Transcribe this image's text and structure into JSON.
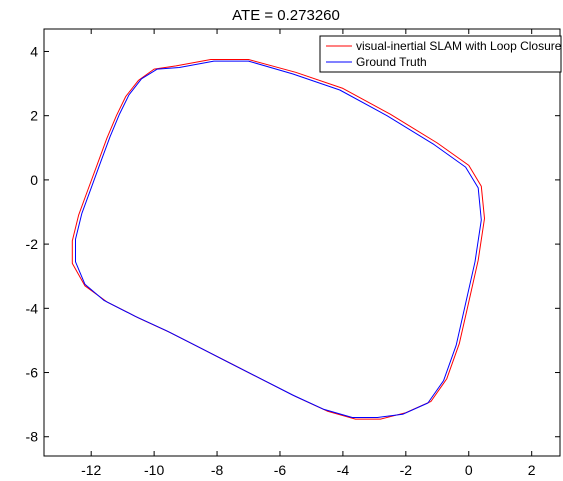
{
  "chart_data": {
    "type": "line",
    "title": "ATE = 0.273260",
    "xlabel": "",
    "ylabel": "",
    "xlim": [
      -13.5,
      2.9
    ],
    "ylim": [
      -8.6,
      4.7
    ],
    "x_ticks": [
      -12,
      -10,
      -8,
      -6,
      -4,
      -2,
      0,
      2
    ],
    "y_ticks": [
      -8,
      -6,
      -4,
      -2,
      0,
      2,
      4
    ],
    "grid": false,
    "legend_position": "top-right",
    "series": [
      {
        "name": "visual-inertial SLAM with Loop Closure",
        "color": "#ff0000",
        "x": [
          -9.3,
          -8.2,
          -7.0,
          -5.5,
          -4.0,
          -2.5,
          -1.0,
          0.0,
          0.4,
          0.5,
          0.3,
          0.0,
          -0.3,
          -0.7,
          -1.2,
          -2.0,
          -2.8,
          -3.6,
          -4.5,
          -5.5,
          -6.5,
          -7.5,
          -8.5,
          -9.5,
          -10.5,
          -11.5,
          -12.2,
          -12.6,
          -12.6,
          -12.4,
          -12.1,
          -11.8,
          -11.5,
          -11.2,
          -10.9,
          -10.5,
          -10.0,
          -9.3
        ],
        "y": [
          3.55,
          3.75,
          3.75,
          3.35,
          2.85,
          2.05,
          1.15,
          0.45,
          -0.2,
          -1.2,
          -2.5,
          -3.8,
          -5.1,
          -6.2,
          -6.9,
          -7.25,
          -7.45,
          -7.45,
          -7.2,
          -6.75,
          -6.25,
          -5.75,
          -5.25,
          -4.75,
          -4.3,
          -3.8,
          -3.3,
          -2.6,
          -1.9,
          -1.1,
          -0.3,
          0.5,
          1.3,
          2.0,
          2.6,
          3.1,
          3.45,
          3.55
        ]
      },
      {
        "name": "Ground Truth",
        "color": "#0000ff",
        "x": [
          -9.2,
          -8.1,
          -7.0,
          -5.6,
          -4.1,
          -2.6,
          -1.1,
          -0.1,
          0.3,
          0.4,
          0.2,
          -0.1,
          -0.4,
          -0.8,
          -1.3,
          -2.1,
          -2.9,
          -3.7,
          -4.6,
          -5.6,
          -6.6,
          -7.6,
          -8.6,
          -9.6,
          -10.6,
          -11.6,
          -12.2,
          -12.5,
          -12.5,
          -12.3,
          -12.0,
          -11.7,
          -11.4,
          -11.1,
          -10.8,
          -10.4,
          -9.9,
          -9.2
        ],
        "y": [
          3.5,
          3.7,
          3.7,
          3.3,
          2.8,
          2.0,
          1.1,
          0.4,
          -0.25,
          -1.25,
          -2.55,
          -3.85,
          -5.15,
          -6.25,
          -6.95,
          -7.3,
          -7.4,
          -7.4,
          -7.15,
          -6.7,
          -6.2,
          -5.7,
          -5.2,
          -4.7,
          -4.25,
          -3.75,
          -3.25,
          -2.55,
          -1.85,
          -1.05,
          -0.25,
          0.55,
          1.35,
          2.05,
          2.65,
          3.15,
          3.45,
          3.5
        ]
      }
    ]
  }
}
